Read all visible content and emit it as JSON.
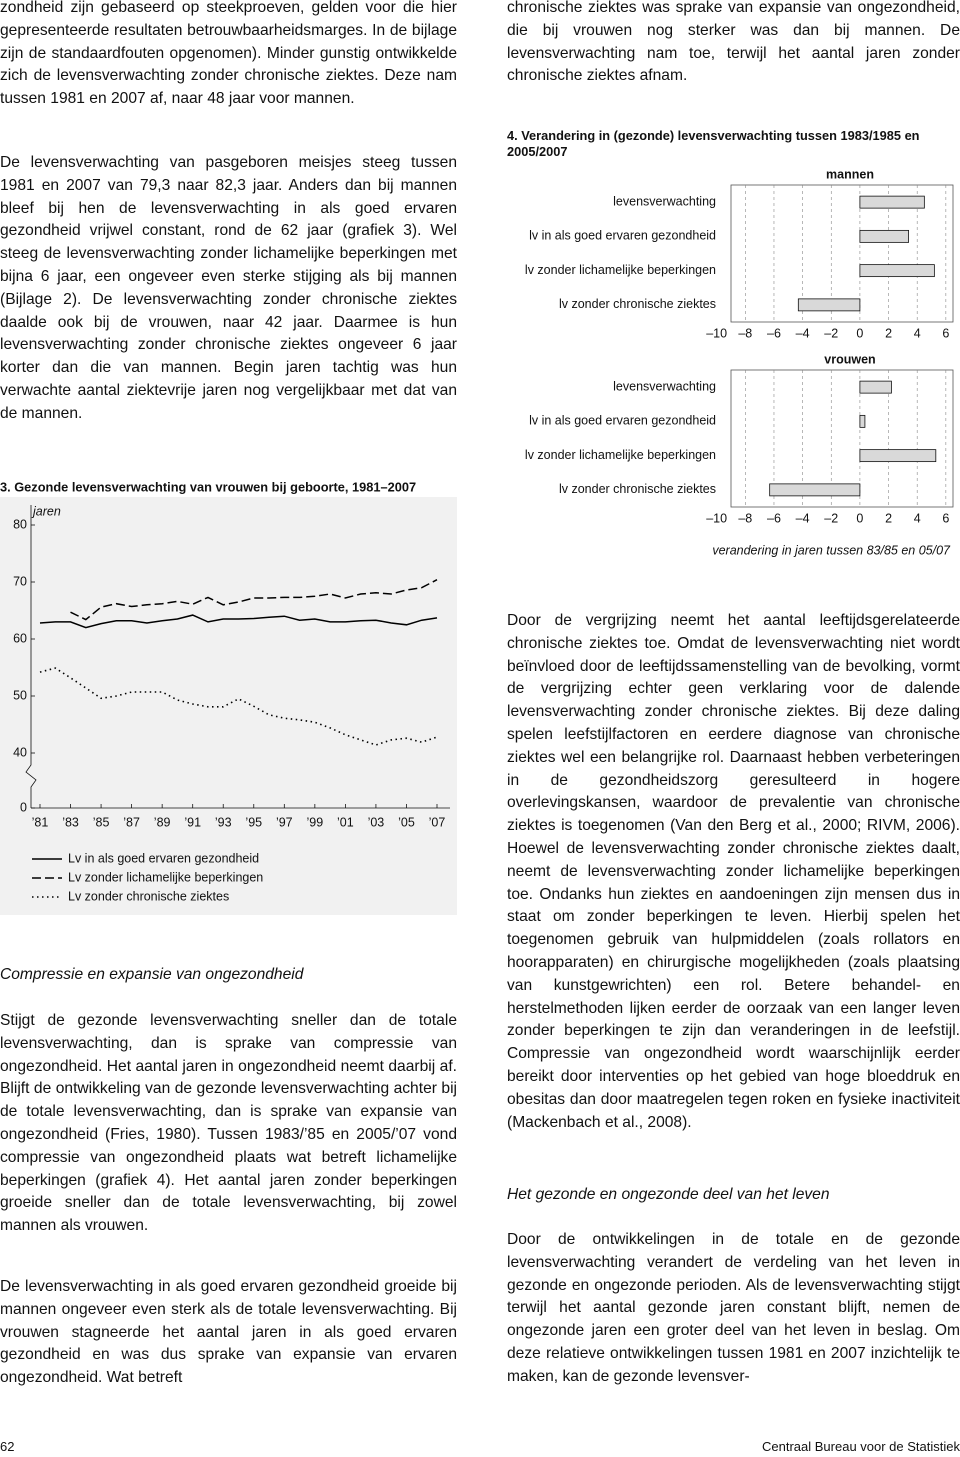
{
  "document": {
    "top_left_paragraphs": [
      "zondheid zijn gebaseerd op steekproeven, gelden voor die hier gepresenteerde resultaten betrouwbaarheidsmarges. In de bijlage zijn de standaardfouten opgenomen). Minder gunstig ontwikkelde zich de levensverwachting zonder chronische ziektes. Deze nam tussen 1981 en 2007 af, naar 48 jaar voor mannen.",
      "De levensverwachting van pasgeboren meisjes steeg tussen 1981 en 2007 van 79,3 naar 82,3 jaar. Anders dan bij mannen bleef bij hen de levensverwachting in als goed ervaren gezondheid vrijwel constant, rond de 62 jaar (grafiek 3). Wel steeg de levensverwachting zonder lichamelijke beperkingen met bijna 6 jaar, een ongeveer even sterke stijging als bij mannen (Bijlage 2). De levensverwachting zonder chronische ziektes daalde ook bij de vrouwen, naar 42 jaar. Daarmee is hun levensverwachting zonder chronische ziektes ongeveer 6 jaar korter dan die van mannen. Begin jaren tachtig was hun verwachte aantal ziektevrije jaren nog vergelijkbaar met dat van de mannen."
    ],
    "left_heading": "Compressie en expansie van ongezondheid",
    "bottom_left_paragraphs": [
      "Stijgt de gezonde levensverwachting sneller dan de totale levensverwachting, dan is sprake van compressie van ongezondheid. Het aantal jaren in ongezondheid neemt daarbij af. Blijft de ontwikkeling van de gezonde levensverwachting achter bij de totale levensverwachting, dan is sprake van expansie van ongezondheid (Fries, 1980). Tussen 1983/’85 en 2005/’07 vond compressie van ongezondheid plaats wat betreft lichamelijke beperkingen (grafiek 4). Het aantal jaren zonder beperkingen groeide sneller dan de totale levensverwachting, bij zowel mannen als vrouwen.",
      "De levensverwachting in als goed ervaren gezondheid groeide bij mannen ongeveer even sterk als de totale levensverwachting. Bij vrouwen stagneerde het aantal jaren in als goed ervaren gezondheid en was dus sprake van expansie van ervaren ongezondheid. Wat betreft"
    ],
    "top_right_paragraph": "chronische ziektes was sprake van expansie van ongezondheid, die bij vrouwen nog sterker was dan bij mannen. De levensverwachting nam toe, terwijl het aantal jaren zonder chronische ziektes afnam.",
    "middle_right_paragraph": "Door de vergrijzing neemt het aantal leeftijdsgerelateerde chronische ziektes toe. Omdat de levensverwachting niet wordt beïnvloed door de leeftijdssamenstelling van de bevolking, vormt de vergrijzing echter geen verklaring voor de dalende levensverwachting zonder chronische ziektes. Bij deze daling spelen leefstijlfactoren en eerdere diagnose van chronische ziektes wel een belangrijke rol. Daarnaast hebben verbeteringen in de gezondheidszorg geresulteerd in hogere overlevingskansen, waardoor de prevalentie van chronische ziektes is toegenomen (Van den Berg et al., 2000; RIVM, 2006). Hoewel de levensverwachting zonder chronische ziektes daalt, neemt de levensverwachting zonder lichamelijke beperkingen toe. Ondanks hun ziektes en aandoeningen zijn mensen dus in staat om zonder beperkingen te leven. Hierbij spelen het toegenomen gebruik van hulpmiddelen (zoals rollators en hoorapparaten) en chirurgische mogelijkheden (zoals plaatsing van kunstgewrichten) een rol. Betere behandel- en herstelmethoden lijken eerder de oorzaak van een langer leven zonder beperkingen te zijn dan veranderingen in de leefstijl. Compressie van ongezondheid wordt waarschijnlijk eerder bereikt door interventies op het gebied van hoge bloeddruk en obesitas dan door maatregelen tegen roken en fysieke inactiviteit (Mackenbach et al., 2008).",
    "right_heading": "Het gezonde en ongezonde deel van het leven",
    "bottom_right_paragraph": "Door de ontwikkelingen in de totale en de gezonde levensverwachting verandert de verdeling van het leven in gezonde en ongezonde perioden. Als de levensverwachting stijgt terwijl het aantal gezonde jaren constant blijft, nemen de ongezonde jaren een groter deel van het leven in beslag. Om deze relatieve ontwikkelingen tussen 1981 en 2007 inzichtelijk te maken, kan de gezonde levensver-"
  },
  "footer": {
    "page_number": 62,
    "publisher": "Centraal Bureau voor de Statistiek"
  },
  "chart_data": [
    {
      "type": "line",
      "title": "3. Gezonde levensverwachting van vrouwen bij geboorte, 1981–2007",
      "y_label": "jaren",
      "x": [
        1981,
        1982,
        1983,
        1984,
        1985,
        1986,
        1987,
        1988,
        1989,
        1990,
        1991,
        1992,
        1993,
        1994,
        1995,
        1996,
        1997,
        1998,
        1999,
        2000,
        2001,
        2002,
        2003,
        2004,
        2005,
        2006,
        2007
      ],
      "xlim": [
        1981,
        2007
      ],
      "xticks": [
        {
          "value": 1981,
          "label": "’81"
        },
        {
          "value": 1983,
          "label": "’83"
        },
        {
          "value": 1985,
          "label": "’85"
        },
        {
          "value": 1987,
          "label": "’87"
        },
        {
          "value": 1989,
          "label": "’89"
        },
        {
          "value": 1991,
          "label": "’91"
        },
        {
          "value": 1993,
          "label": "’93"
        },
        {
          "value": 1995,
          "label": "’95"
        },
        {
          "value": 1997,
          "label": "’97"
        },
        {
          "value": 1999,
          "label": "’99"
        },
        {
          "value": 2001,
          "label": "’01"
        },
        {
          "value": 2003,
          "label": "’03"
        },
        {
          "value": 2005,
          "label": "’05"
        },
        {
          "value": 2007,
          "label": "’07"
        }
      ],
      "ylim": [
        0,
        80
      ],
      "yticks": [
        0,
        40,
        50,
        60,
        70,
        80
      ],
      "axis_break": true,
      "series": [
        {
          "name": "Lv in als goed ervaren gezondheid",
          "color": "#000000",
          "style": "solid",
          "values": [
            62.8,
            63.0,
            63.0,
            62.0,
            62.7,
            63.2,
            63.2,
            62.8,
            63.2,
            63.5,
            64.2,
            63.0,
            63.5,
            63.5,
            63.6,
            63.8,
            64.0,
            63.3,
            63.5,
            63.0,
            63.0,
            63.2,
            63.3,
            62.8,
            62.5,
            63.3,
            63.7
          ]
        },
        {
          "name": "Lv zonder lichamelijke beperkingen",
          "color": "#000000",
          "style": "dashed",
          "values": [
            null,
            null,
            64.7,
            63.4,
            65.6,
            66.2,
            65.7,
            66.0,
            66.2,
            66.6,
            66.1,
            67.3,
            66.0,
            66.5,
            67.2,
            67.2,
            67.3,
            67.3,
            67.5,
            67.9,
            67.2,
            67.9,
            68.1,
            67.9,
            68.6,
            69.0,
            70.4
          ]
        },
        {
          "name": "Lv zonder chronische ziektes",
          "color": "#000000",
          "style": "dotted",
          "values": [
            54.2,
            54.9,
            53.2,
            51.4,
            49.6,
            50.0,
            50.7,
            50.7,
            50.7,
            49.3,
            48.6,
            48.1,
            48.1,
            49.5,
            48.2,
            46.7,
            46.1,
            45.8,
            45.4,
            44.4,
            43.2,
            42.3,
            41.4,
            42.3,
            42.6,
            41.9,
            42.8
          ]
        }
      ]
    },
    {
      "type": "bar",
      "orientation": "horizontal",
      "title": "4. Verandering in (gezonde) levensverwachting tussen 1983/1985 en 2005/2007",
      "subtitle": "mannen",
      "categories": [
        "levensverwachting",
        "lv in als goed ervaren gezondheid",
        "lv zonder lichamelijke beperkingen",
        "lv zonder chronische ziektes"
      ],
      "values": [
        4.5,
        3.4,
        5.2,
        -4.3
      ],
      "color": "#d9d9d9",
      "xlim": [
        -9,
        6.5
      ],
      "xticks": [
        {
          "value": -10,
          "label": "–10"
        },
        {
          "value": -8,
          "label": "–8"
        },
        {
          "value": -6,
          "label": "–6"
        },
        {
          "value": -4,
          "label": "–4"
        },
        {
          "value": -2,
          "label": "–2"
        },
        0,
        2,
        4,
        6
      ],
      "grid": true
    },
    {
      "type": "bar",
      "orientation": "horizontal",
      "subtitle": "vrouwen",
      "x_label": "verandering in jaren tussen 83/85 en 05/07",
      "categories": [
        "levensverwachting",
        "lv in als goed ervaren gezondheid",
        "lv zonder lichamelijke beperkingen",
        "lv zonder chronische ziektes"
      ],
      "values": [
        2.2,
        0.35,
        5.3,
        -6.3
      ],
      "color": "#d9d9d9",
      "xlim": [
        -9,
        6.5
      ],
      "xticks": [
        {
          "value": -10,
          "label": "–10"
        },
        {
          "value": -8,
          "label": "–8"
        },
        {
          "value": -6,
          "label": "–6"
        },
        {
          "value": -4,
          "label": "–4"
        },
        {
          "value": -2,
          "label": "–2"
        },
        0,
        2,
        4,
        6
      ],
      "grid": true
    }
  ]
}
